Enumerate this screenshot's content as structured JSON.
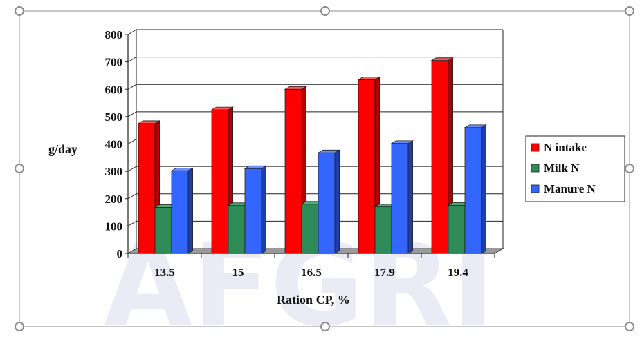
{
  "chart_data": {
    "type": "bar",
    "categories": [
      "13.5",
      "15",
      "16.5",
      "17.9",
      "19.4"
    ],
    "series": [
      {
        "name": "N intake",
        "values": [
          475,
          525,
          600,
          635,
          705
        ],
        "color": "#ff0000",
        "side_color": "#b30000",
        "top_color": "#ff5a5a"
      },
      {
        "name": "Milk N",
        "values": [
          168,
          175,
          180,
          170,
          176
        ],
        "color": "#2e8b57",
        "side_color": "#1c5c38",
        "top_color": "#4fb07a"
      },
      {
        "name": "Manure N",
        "values": [
          302,
          310,
          368,
          402,
          460
        ],
        "color": "#3366ff",
        "side_color": "#1f3fa8",
        "top_color": "#6b8fff"
      }
    ],
    "title": "",
    "xlabel": "Ration CP, %",
    "ylabel": "g/day",
    "ylim": [
      0,
      800
    ],
    "yticks": [
      0,
      100,
      200,
      300,
      400,
      500,
      600,
      700,
      800
    ],
    "grid": true,
    "legend_position": "right"
  },
  "watermark": {
    "text": "AFGRI",
    "color": "#ebebf5"
  },
  "frame": {
    "border_color": "#8c8c8c",
    "handle_color": "#8c8c8c"
  }
}
